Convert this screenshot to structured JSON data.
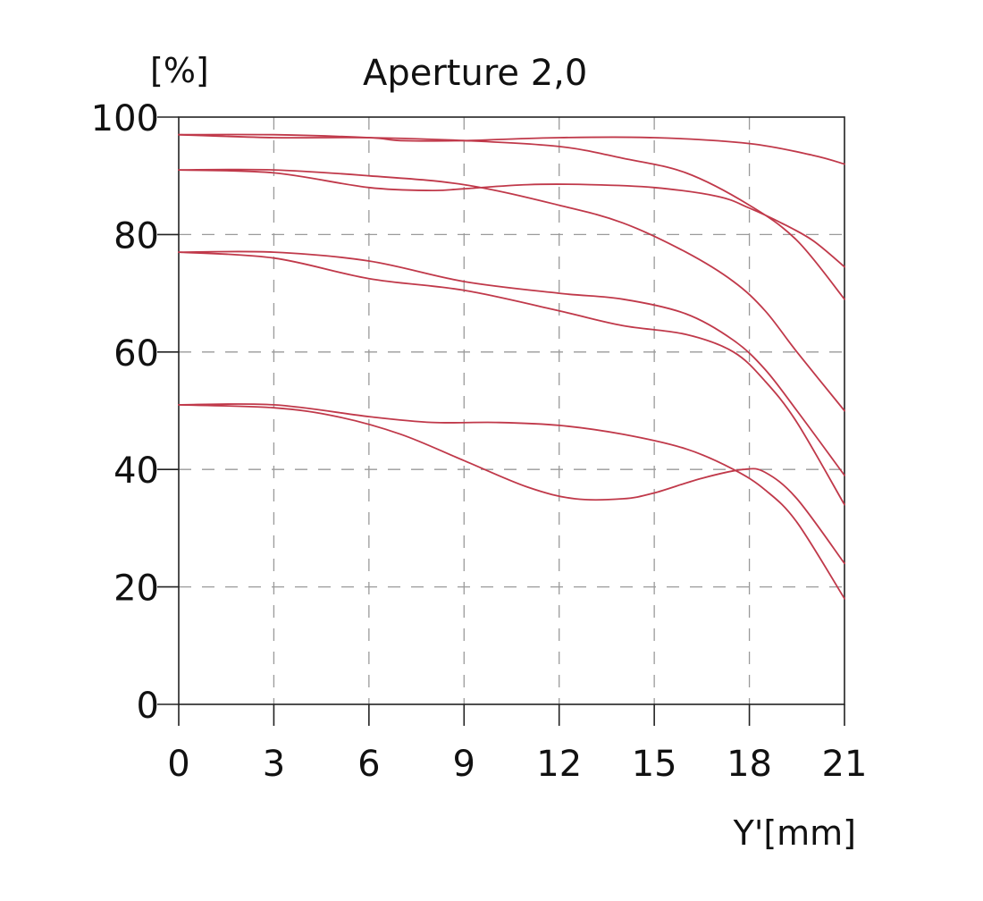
{
  "chart_data": {
    "type": "line",
    "title": "Aperture 2,0",
    "ylabel": "[%]",
    "xlabel": "Y'[mm]",
    "xlim": [
      0,
      21
    ],
    "ylim": [
      0,
      100
    ],
    "x_ticks": [
      "0",
      "3",
      "6",
      "9",
      "12",
      "15",
      "18",
      "21"
    ],
    "y_ticks": [
      "0",
      "20",
      "40",
      "60",
      "80",
      "100"
    ],
    "grid": true,
    "line_color": "#c0394a",
    "series": [
      {
        "x": [
          0,
          3,
          6,
          7,
          9,
          12,
          15,
          18,
          20,
          21
        ],
        "y": [
          97,
          97,
          96.5,
          96,
          96,
          96.5,
          96.5,
          95.5,
          93.5,
          92
        ]
      },
      {
        "x": [
          0,
          3,
          6,
          9,
          12,
          14,
          16,
          18,
          19.5,
          21
        ],
        "y": [
          97,
          96.5,
          96.5,
          96,
          95,
          93,
          90.5,
          85,
          79,
          69
        ]
      },
      {
        "x": [
          0,
          3,
          6,
          8,
          9,
          11,
          13,
          15,
          17,
          18,
          19,
          20,
          21
        ],
        "y": [
          91,
          90.5,
          88,
          87.5,
          87.8,
          88.5,
          88.5,
          88,
          86.5,
          84.5,
          82,
          79,
          74.5
        ]
      },
      {
        "x": [
          0,
          3,
          6,
          9,
          12,
          14,
          16,
          17.5,
          18.5,
          19.5,
          21
        ],
        "y": [
          91,
          91,
          90,
          88.5,
          85,
          82,
          77,
          72,
          67,
          60,
          50
        ]
      },
      {
        "x": [
          0,
          3,
          6,
          9,
          12,
          14,
          16,
          17.5,
          18.5,
          19.5,
          21
        ],
        "y": [
          77,
          77,
          75.5,
          72,
          70,
          69,
          66.5,
          62,
          57,
          50,
          39
        ]
      },
      {
        "x": [
          0,
          3,
          6,
          9,
          12,
          14,
          16,
          17.5,
          18.5,
          19.5,
          21
        ],
        "y": [
          77,
          76,
          72.5,
          70.5,
          67,
          64.5,
          63,
          60,
          55,
          48,
          34
        ]
      },
      {
        "x": [
          0,
          3,
          6,
          8,
          10,
          12,
          14,
          16,
          17.5,
          18.5,
          19.5,
          21
        ],
        "y": [
          51,
          51,
          49,
          48,
          48,
          47.5,
          46,
          43.5,
          40,
          36.5,
          31,
          18
        ]
      },
      {
        "x": [
          0,
          3,
          5,
          7,
          9,
          11,
          12.5,
          14,
          15,
          16.5,
          17.8,
          18.5,
          19.5,
          21
        ],
        "y": [
          51,
          50.5,
          49,
          46,
          41.5,
          37,
          35,
          35,
          36,
          38.5,
          40,
          39.5,
          35,
          24
        ]
      }
    ]
  }
}
